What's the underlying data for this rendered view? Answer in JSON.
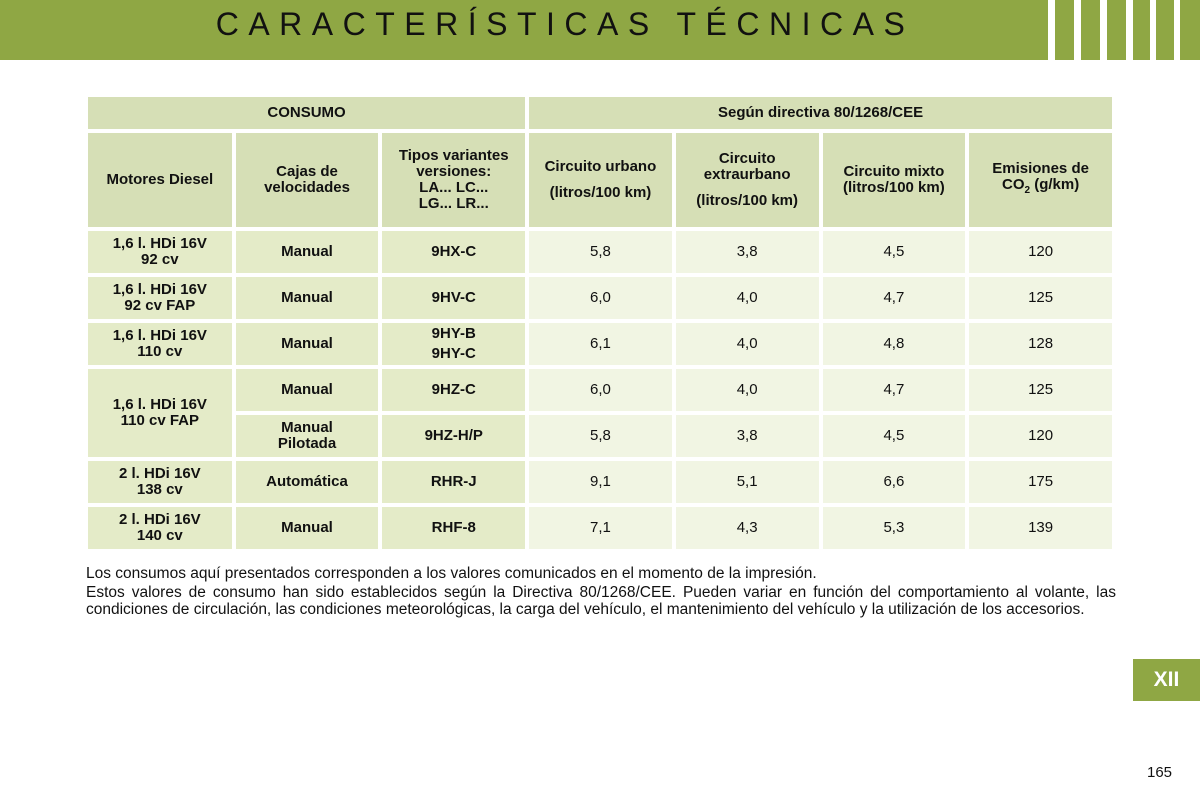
{
  "header": {
    "title": "CARACTERÍSTICAS TÉCNICAS",
    "color": "#8fa744"
  },
  "table": {
    "title_left": "CONSUMO",
    "title_right": "Según directiva 80/1268/CEE",
    "col_motores": "Motores Diesel",
    "col_cajas": "Cajas de velocidades",
    "col_tipos": "Tipos variantes versiones:",
    "col_tipos_codes_1": "LA... LC...",
    "col_tipos_codes_2": "LG... LR...",
    "col_urbano": "Circuito urbano",
    "col_urbano_unit": "(litros/100 km)",
    "col_extra": "Circuito extraurbano",
    "col_extra_unit": "(litros/100 km)",
    "col_mixto": "Circuito mixto",
    "col_mixto_unit": "(litros/100 km)",
    "col_emis_pre": "Emisiones de",
    "col_emis_co": "CO",
    "col_emis_sub": "2",
    "col_emis_unit": "(g/km)",
    "rows": [
      {
        "engine_1": "1,6 l. HDi 16V",
        "engine_2": "92 cv",
        "gearbox": "Manual",
        "types": "9HX-C",
        "urbano": "5,8",
        "extra": "3,8",
        "mixto": "4,5",
        "co2": "120"
      },
      {
        "engine_1": "1,6 l. HDi 16V",
        "engine_2": "92 cv FAP",
        "gearbox": "Manual",
        "types": "9HV-C",
        "urbano": "6,0",
        "extra": "4,0",
        "mixto": "4,7",
        "co2": "125"
      },
      {
        "engine_1": "1,6 l. HDi 16V",
        "engine_2": "110 cv",
        "gearbox": "Manual",
        "types_1": "9HY-B",
        "types_2": "9HY-C",
        "urbano": "6,1",
        "extra": "4,0",
        "mixto": "4,8",
        "co2": "128"
      },
      {
        "engine_1": "1,6 l. HDi 16V",
        "engine_2": "110 cv FAP",
        "gearbox": "Manual",
        "types": "9HZ-C",
        "urbano": "6,0",
        "extra": "4,0",
        "mixto": "4,7",
        "co2": "125"
      },
      {
        "gearbox_1": "Manual",
        "gearbox_2": "Pilotada",
        "types": "9HZ-H/P",
        "urbano": "5,8",
        "extra": "3,8",
        "mixto": "4,5",
        "co2": "120"
      },
      {
        "engine_1": "2 l. HDi 16V",
        "engine_2": "138 cv",
        "gearbox": "Automática",
        "types": "RHR-J",
        "urbano": "9,1",
        "extra": "5,1",
        "mixto": "6,6",
        "co2": "175"
      },
      {
        "engine_1": "2 l. HDi 16V",
        "engine_2": "140 cv",
        "gearbox": "Manual",
        "types": "RHF-8",
        "urbano": "7,1",
        "extra": "4,3",
        "mixto": "5,3",
        "co2": "139"
      }
    ]
  },
  "notes": {
    "line_1": "Los consumos aquí presentados corresponden a los valores comunicados en el momento de la impresión.",
    "line_2": "Estos valores de consumo han sido establecidos según la Directiva 80/1268/CEE. Pueden variar en función del comportamiento al volante, las condiciones de circulación, las condiciones meteorológicas, la carga del vehículo, el mantenimiento del vehículo y la utilización de los accesorios."
  },
  "chapter_tab": "XII",
  "page_number": "165"
}
